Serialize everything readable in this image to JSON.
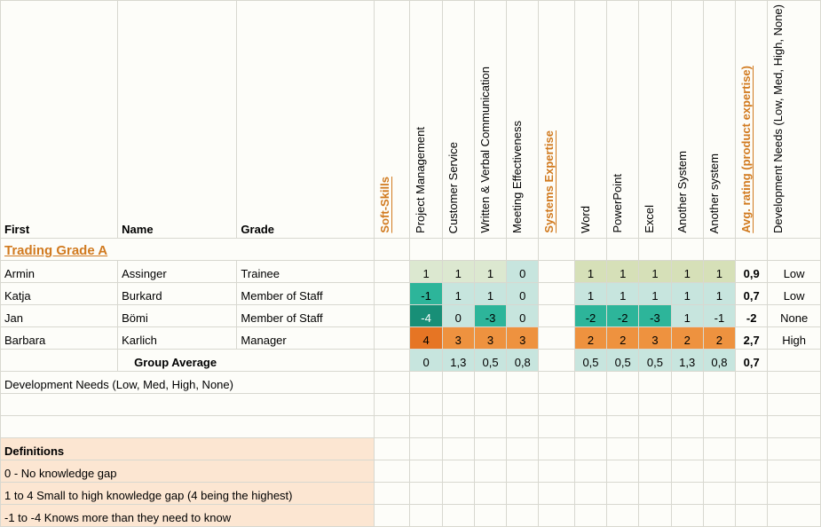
{
  "headers": {
    "first": "First",
    "name": "Name",
    "grade": "Grade",
    "soft_skills": "Soft-Skills",
    "soft": [
      "Project Management",
      "Customer Service",
      "Written & Verbal Communication",
      "Meeting Effectiveness"
    ],
    "systems_expertise": "Systems Expertise",
    "sys": [
      "Word",
      "PowerPoint",
      "Excel",
      "Another System",
      "Another system"
    ],
    "avg_rating": "Avg. rating (product expertise)",
    "dev_needs": "Development Needs (Low, Med, High, None)"
  },
  "section_title": "Trading Grade A",
  "rows": [
    {
      "first": "Armin",
      "name": "Assinger",
      "grade": "Trainee",
      "soft": [
        {
          "v": "1",
          "bg": "bg-vlightgreen"
        },
        {
          "v": "1",
          "bg": "bg-vlightgreen"
        },
        {
          "v": "1",
          "bg": "bg-vlightgreen"
        },
        {
          "v": "0",
          "bg": "bg-lightteal"
        }
      ],
      "sys": [
        {
          "v": "1",
          "bg": "bg-palelime"
        },
        {
          "v": "1",
          "bg": "bg-palelime"
        },
        {
          "v": "1",
          "bg": "bg-palelime"
        },
        {
          "v": "1",
          "bg": "bg-palelime"
        },
        {
          "v": "1",
          "bg": "bg-palelime"
        }
      ],
      "avg": "0,9",
      "need": "Low"
    },
    {
      "first": "Katja",
      "name": "Burkard",
      "grade": "Member of Staff",
      "soft": [
        {
          "v": "-1",
          "bg": "bg-teal"
        },
        {
          "v": "1",
          "bg": "bg-lightteal"
        },
        {
          "v": "1",
          "bg": "bg-lightteal"
        },
        {
          "v": "0",
          "bg": "bg-lightteal"
        }
      ],
      "sys": [
        {
          "v": "1",
          "bg": "bg-lightteal"
        },
        {
          "v": "1",
          "bg": "bg-lightteal"
        },
        {
          "v": "1",
          "bg": "bg-lightteal"
        },
        {
          "v": "1",
          "bg": "bg-lightteal"
        },
        {
          "v": "1",
          "bg": "bg-lightteal"
        }
      ],
      "avg": "0,7",
      "need": "Low"
    },
    {
      "first": "Jan",
      "name": "Bömi",
      "grade": "Member of Staff",
      "soft": [
        {
          "v": "-4",
          "bg": "bg-darkteal"
        },
        {
          "v": "0",
          "bg": "bg-lightteal"
        },
        {
          "v": "-3",
          "bg": "bg-teal"
        },
        {
          "v": "0",
          "bg": "bg-lightteal"
        }
      ],
      "sys": [
        {
          "v": "-2",
          "bg": "bg-teal"
        },
        {
          "v": "-2",
          "bg": "bg-teal"
        },
        {
          "v": "-3",
          "bg": "bg-teal"
        },
        {
          "v": "1",
          "bg": "bg-lightteal"
        },
        {
          "v": "-1",
          "bg": "bg-lightteal"
        }
      ],
      "avg": "-2",
      "need": "None"
    },
    {
      "first": "Barbara",
      "name": "Karlich",
      "grade": "Manager",
      "soft": [
        {
          "v": "4",
          "bg": "bg-orange"
        },
        {
          "v": "3",
          "bg": "bg-orange2"
        },
        {
          "v": "3",
          "bg": "bg-orange2"
        },
        {
          "v": "3",
          "bg": "bg-orange2"
        }
      ],
      "sys": [
        {
          "v": "2",
          "bg": "bg-orange2"
        },
        {
          "v": "2",
          "bg": "bg-orange2"
        },
        {
          "v": "3",
          "bg": "bg-orange2"
        },
        {
          "v": "2",
          "bg": "bg-orange2"
        },
        {
          "v": "2",
          "bg": "bg-orange2"
        }
      ],
      "avg": "2,7",
      "need": "High"
    }
  ],
  "group_avg": {
    "label": "Group Average",
    "soft": [
      "0",
      "1,3",
      "0,5",
      "0,8"
    ],
    "sys": [
      "0,5",
      "0,5",
      "0,5",
      "1,3",
      "0,8"
    ],
    "avg": "0,7"
  },
  "dev_needs_row": "Development Needs (Low, Med, High, None)",
  "definitions": {
    "title": "Definitions",
    "lines": [
      "0 - No knowledge gap",
      "1 to 4 Small to high knowledge gap (4 being the highest)",
      "-1 to -4 Knows more than they need to know"
    ]
  },
  "style": {
    "accent_color": "#d17a1f",
    "grid_color": "#d8d8d0",
    "def_bg": "#fce6d2",
    "cell_colors": {
      "bg-vlightgreen": "#dce8d0",
      "bg-lightteal": "#c7e5de",
      "bg-teal": "#2db59a",
      "bg-darkteal": "#188f77",
      "bg-orange": "#e67524",
      "bg-orange2": "#ee923f",
      "bg-palelime": "#d6e0b8"
    }
  }
}
